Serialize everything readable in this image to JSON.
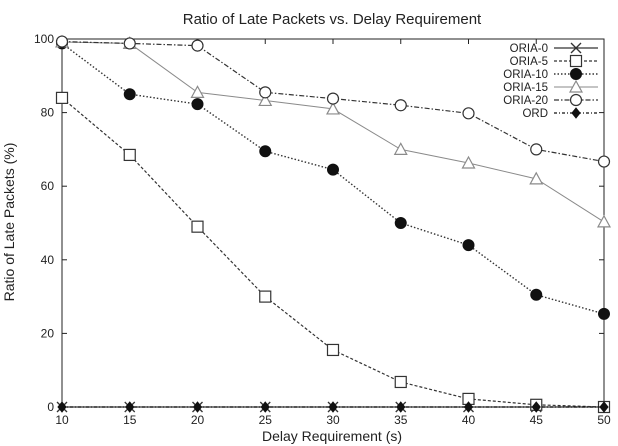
{
  "chart_data": {
    "type": "line",
    "title": "Ratio of Late Packets vs. Delay Requirement",
    "xlabel": "Delay Requirement (s)",
    "ylabel": "Ratio of Late Packets (%)",
    "x": [
      10,
      15,
      20,
      25,
      30,
      35,
      40,
      45,
      50
    ],
    "xlim": [
      10,
      50
    ],
    "ylim": [
      0,
      100
    ],
    "xticks": [
      "10",
      "15",
      "20",
      "25",
      "30",
      "35",
      "40",
      "45",
      "50"
    ],
    "yticks": [
      "0",
      "20",
      "40",
      "60",
      "80",
      "100"
    ],
    "grid": false,
    "legend_position": "top-right",
    "series": [
      {
        "name": "ORIA-0",
        "marker": "cross",
        "dash": "solid",
        "color": "#333333",
        "values": [
          0,
          0,
          0,
          0,
          0,
          0,
          0,
          0,
          0
        ]
      },
      {
        "name": "ORIA-5",
        "marker": "open-square",
        "dash": "dashed",
        "color": "#333333",
        "values": [
          84,
          68.5,
          49,
          30,
          15.5,
          6.8,
          2.2,
          0.6,
          0
        ]
      },
      {
        "name": "ORIA-10",
        "marker": "filled-circle",
        "dash": "dotted",
        "color": "#333333",
        "values": [
          98.8,
          85,
          82.3,
          69.5,
          64.5,
          50,
          44,
          30.5,
          25.3
        ]
      },
      {
        "name": "ORIA-15",
        "marker": "open-triangle",
        "dash": "solid-light",
        "color": "#8a8a8a",
        "values": [
          99.2,
          98.8,
          85.5,
          83.3,
          81,
          70,
          66.3,
          62,
          50.3
        ]
      },
      {
        "name": "ORIA-20",
        "marker": "open-circle",
        "dash": "dashdot",
        "color": "#333333",
        "values": [
          99.3,
          98.8,
          98.2,
          85.5,
          83.8,
          82,
          79.8,
          70,
          66.7
        ]
      },
      {
        "name": "ORD",
        "marker": "filled-diamond",
        "dash": "dashed-dot",
        "color": "#111111",
        "values": [
          0,
          0,
          0,
          0,
          0,
          0,
          0,
          0,
          0
        ]
      }
    ]
  }
}
